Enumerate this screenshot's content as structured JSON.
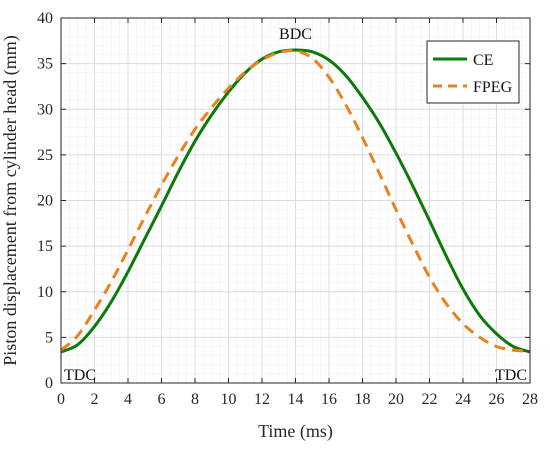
{
  "chart_data": {
    "type": "line",
    "xlabel": "Time (ms)",
    "ylabel": "Piston displacement from cylinder head (mm)",
    "xlim": [
      0,
      28
    ],
    "ylim": [
      0,
      40
    ],
    "xticks": [
      0,
      2,
      4,
      6,
      8,
      10,
      12,
      14,
      16,
      18,
      20,
      22,
      24,
      26,
      28
    ],
    "yticks": [
      0,
      5,
      10,
      15,
      20,
      25,
      30,
      35,
      40
    ],
    "grid": true,
    "legend_position": "top-right",
    "annotations": [
      {
        "text": "BDC",
        "x": 14,
        "y": 36.5,
        "position": "above"
      },
      {
        "text": "TDC",
        "x": 0,
        "y": 0,
        "position": "bottom-left"
      },
      {
        "text": "TDC",
        "x": 28,
        "y": 0,
        "position": "bottom-right"
      }
    ],
    "series": [
      {
        "name": "CE",
        "color": "#0a7a0a",
        "style": "solid",
        "x": [
          0,
          1,
          2,
          3,
          4,
          5,
          6,
          7,
          8,
          9,
          10,
          11,
          12,
          13,
          14,
          15,
          16,
          17,
          18,
          19,
          20,
          21,
          22,
          23,
          24,
          25,
          26,
          27,
          28
        ],
        "y": [
          3.4,
          4.2,
          6.2,
          8.9,
          12.2,
          15.8,
          19.4,
          23.1,
          26.5,
          29.4,
          31.9,
          34.0,
          35.5,
          36.3,
          36.5,
          36.3,
          35.4,
          33.7,
          31.3,
          28.5,
          25.2,
          21.6,
          17.8,
          13.9,
          10.3,
          7.4,
          5.4,
          4.0,
          3.4
        ]
      },
      {
        "name": "FPEG",
        "color": "#e8821e",
        "style": "dashed",
        "x": [
          0,
          1,
          2,
          3,
          4,
          5,
          6,
          7,
          8,
          9,
          10,
          11,
          12,
          13,
          14,
          15,
          16,
          17,
          18,
          19,
          20,
          21,
          22,
          23,
          24,
          25,
          26,
          27,
          28
        ],
        "y": [
          3.6,
          5.2,
          8.0,
          11.1,
          14.6,
          18.2,
          21.7,
          24.9,
          27.8,
          30.2,
          32.3,
          34.1,
          35.4,
          36.2,
          36.4,
          35.6,
          33.5,
          30.5,
          26.9,
          23.0,
          19.0,
          15.2,
          11.6,
          8.7,
          6.5,
          5.0,
          4.0,
          3.6,
          3.5
        ]
      }
    ]
  }
}
